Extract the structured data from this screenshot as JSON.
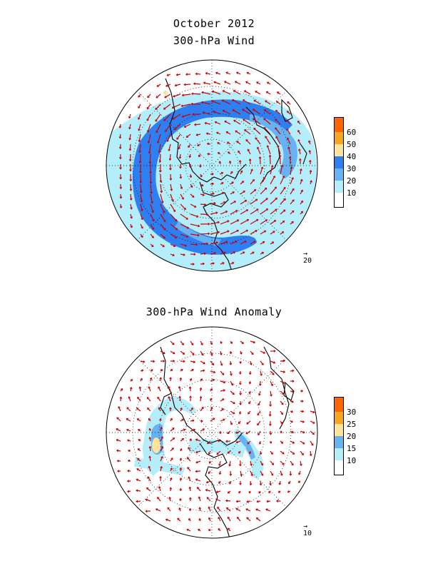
{
  "header": {
    "title": "October 2012",
    "subtitle": "300-hPa Wind"
  },
  "panel2": {
    "title": "300-hPa Wind Anomaly"
  },
  "colorbar1": {
    "labels": [
      "60",
      "50",
      "40",
      "30",
      "20",
      "10"
    ],
    "colors": [
      "#ff6600",
      "#f6a623",
      "#fde49a",
      "#2e7ff2",
      "#66b2f2",
      "#b4eefa",
      "#ffffff"
    ]
  },
  "colorbar2": {
    "labels": [
      "30",
      "25",
      "20",
      "15",
      "10"
    ],
    "colors": [
      "#ff6600",
      "#f6a623",
      "#fde49a",
      "#66b2f2",
      "#b4eefa",
      "#ffffff"
    ]
  },
  "ref_vectors": {
    "map1": "20",
    "map2": "10"
  },
  "style": {
    "vector_color": "#cc0000",
    "coast_color": "#000000"
  }
}
